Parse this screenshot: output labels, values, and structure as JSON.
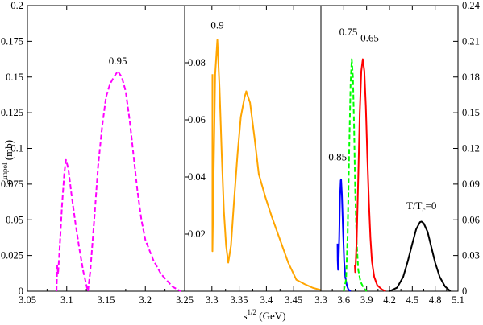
{
  "chart_data": {
    "type": "line",
    "xlabel": "s",
    "xlabel_sup": "1/2",
    "xlabel_unit": " (GeV)",
    "ylabel": "σ",
    "ylabel_sup": "unpol",
    "ylabel_unit": " (mb)",
    "panels": [
      {
        "xlim": [
          3.05,
          3.25
        ],
        "ylim": [
          0,
          0.2
        ],
        "y_axis_side": "left",
        "xticks": [
          "3.05",
          "3.1",
          "3.15",
          "3.2",
          "3.25"
        ],
        "xtick_values": [
          3.05,
          3.1,
          3.15,
          3.2,
          3.25
        ],
        "yticks": [
          "0",
          "0.025",
          "0.05",
          "0.075",
          "0.1",
          "0.125",
          "0.15",
          "0.175",
          "0.2"
        ],
        "ytick_values": [
          0,
          0.025,
          0.05,
          0.075,
          0.1,
          0.125,
          0.15,
          0.175,
          0.2
        ],
        "series": [
          {
            "label": "0.95",
            "color": "#ff00ff",
            "dash": "dashed",
            "label_at": [
              3.165,
              0.159
            ],
            "points": [
              [
                3.087,
                0.0
              ],
              [
                3.088,
                0.018
              ],
              [
                3.089,
                0.012
              ],
              [
                3.091,
                0.03
              ],
              [
                3.094,
                0.06
              ],
              [
                3.097,
                0.083
              ],
              [
                3.099,
                0.092
              ],
              [
                3.102,
                0.086
              ],
              [
                3.106,
                0.068
              ],
              [
                3.111,
                0.048
              ],
              [
                3.116,
                0.03
              ],
              [
                3.121,
                0.014
              ],
              [
                3.126,
                0.002
              ],
              [
                3.127,
                0.0
              ],
              [
                3.13,
                0.014
              ],
              [
                3.135,
                0.05
              ],
              [
                3.14,
                0.088
              ],
              [
                3.145,
                0.115
              ],
              [
                3.15,
                0.136
              ],
              [
                3.155,
                0.145
              ],
              [
                3.16,
                0.15
              ],
              [
                3.165,
                0.154
              ],
              [
                3.17,
                0.15
              ],
              [
                3.175,
                0.14
              ],
              [
                3.18,
                0.12
              ],
              [
                3.185,
                0.095
              ],
              [
                3.19,
                0.07
              ],
              [
                3.195,
                0.05
              ],
              [
                3.2,
                0.036
              ],
              [
                3.21,
                0.022
              ],
              [
                3.22,
                0.012
              ],
              [
                3.235,
                0.003
              ],
              [
                3.245,
                0.0
              ]
            ]
          }
        ]
      },
      {
        "xlim": [
          3.25,
          3.5
        ],
        "ylim": [
          0,
          0.1
        ],
        "y_axis_side": "left-inner",
        "xticks": [
          "3.3",
          "3.35",
          "3.4",
          "3.45"
        ],
        "xtick_values": [
          3.3,
          3.35,
          3.4,
          3.45
        ],
        "yticks": [
          "0.02",
          "0.04",
          "0.06",
          "0.08"
        ],
        "ytick_values": [
          0.02,
          0.04,
          0.06,
          0.08
        ],
        "series": [
          {
            "label": "0.9",
            "color": "#ffa500",
            "dash": "solid",
            "label_at": [
              3.31,
              0.092
            ],
            "points": [
              [
                3.301,
                0.076
              ],
              [
                3.301,
                0.014
              ],
              [
                3.306,
                0.076
              ],
              [
                3.31,
                0.088
              ],
              [
                3.314,
                0.071
              ],
              [
                3.318,
                0.048
              ],
              [
                3.322,
                0.028
              ],
              [
                3.326,
                0.016
              ],
              [
                3.33,
                0.01
              ],
              [
                3.335,
                0.016
              ],
              [
                3.34,
                0.03
              ],
              [
                3.347,
                0.048
              ],
              [
                3.353,
                0.061
              ],
              [
                3.36,
                0.068
              ],
              [
                3.363,
                0.07
              ],
              [
                3.37,
                0.066
              ],
              [
                3.378,
                0.054
              ],
              [
                3.386,
                0.041
              ],
              [
                3.398,
                0.033
              ],
              [
                3.41,
                0.026
              ],
              [
                3.425,
                0.018
              ],
              [
                3.44,
                0.01
              ],
              [
                3.455,
                0.004
              ],
              [
                3.47,
                0.0025
              ],
              [
                3.485,
                0.0012
              ],
              [
                3.5,
                0.0004
              ]
            ]
          }
        ]
      },
      {
        "xlim": [
          3.3,
          5.1
        ],
        "ylim": [
          0,
          0.24
        ],
        "y_axis_side": "right",
        "xticks": [
          "3.3",
          "3.6",
          "3.9",
          "4.2",
          "4.5",
          "4.8",
          "5.1"
        ],
        "xtick_values": [
          3.3,
          3.6,
          3.9,
          4.2,
          4.5,
          4.8,
          5.1
        ],
        "yticks": [
          "0",
          "0.03",
          "0.06",
          "0.09",
          "0.12",
          "0.15",
          "0.18",
          "0.21",
          "0.24"
        ],
        "ytick_values": [
          0,
          0.03,
          0.06,
          0.09,
          0.12,
          0.15,
          0.18,
          0.21,
          0.24
        ],
        "series": [
          {
            "label": "0.85",
            "color": "#0000ff",
            "dash": "solid",
            "label_at": [
              3.52,
              0.11
            ],
            "points": [
              [
                3.518,
                0.04
              ],
              [
                3.52,
                0.026
              ],
              [
                3.525,
                0.018
              ],
              [
                3.53,
                0.02
              ],
              [
                3.54,
                0.045
              ],
              [
                3.55,
                0.078
              ],
              [
                3.56,
                0.093
              ],
              [
                3.565,
                0.094
              ],
              [
                3.575,
                0.082
              ],
              [
                3.59,
                0.052
              ],
              [
                3.605,
                0.025
              ],
              [
                3.62,
                0.012
              ],
              [
                3.64,
                0.005
              ],
              [
                3.66,
                0.0015
              ],
              [
                3.69,
                0.0
              ]
            ]
          },
          {
            "label": "0.75",
            "color": "#00ff00",
            "dash": "dashed",
            "label_at": [
              3.66,
              0.215
            ],
            "points": [
              [
                3.6,
                0.0
              ],
              [
                3.63,
                0.01
              ],
              [
                3.65,
                0.045
              ],
              [
                3.67,
                0.115
              ],
              [
                3.69,
                0.175
              ],
              [
                3.705,
                0.195
              ],
              [
                3.72,
                0.18
              ],
              [
                3.735,
                0.14
              ],
              [
                3.75,
                0.085
              ],
              [
                3.77,
                0.04
              ],
              [
                3.79,
                0.018
              ],
              [
                3.82,
                0.008
              ],
              [
                3.86,
                0.003
              ],
              [
                3.9,
                0.0
              ]
            ]
          },
          {
            "label": "0.65",
            "color": "#ff0000",
            "dash": "solid",
            "label_at": [
              3.94,
              0.21
            ],
            "points": [
              [
                3.745,
                0.022
              ],
              [
                3.75,
                0.016
              ],
              [
                3.755,
                0.02
              ],
              [
                3.77,
                0.045
              ],
              [
                3.79,
                0.095
              ],
              [
                3.81,
                0.15
              ],
              [
                3.83,
                0.185
              ],
              [
                3.85,
                0.195
              ],
              [
                3.87,
                0.185
              ],
              [
                3.89,
                0.155
              ],
              [
                3.91,
                0.112
              ],
              [
                3.93,
                0.075
              ],
              [
                3.95,
                0.045
              ],
              [
                3.97,
                0.025
              ],
              [
                4.0,
                0.012
              ],
              [
                4.04,
                0.005
              ],
              [
                4.1,
                0.0015
              ],
              [
                4.15,
                0.0
              ]
            ]
          },
          {
            "label": "T/Tc=0",
            "label_main": "T/T",
            "label_sub": "c",
            "label_tail": "=0",
            "color": "#000000",
            "dash": "solid",
            "label_at": [
              4.62,
              0.069
            ],
            "points": [
              [
                4.2,
                0.0
              ],
              [
                4.3,
                0.003
              ],
              [
                4.38,
                0.012
              ],
              [
                4.44,
                0.025
              ],
              [
                4.5,
                0.04
              ],
              [
                4.55,
                0.052
              ],
              [
                4.6,
                0.058
              ],
              [
                4.62,
                0.0585
              ],
              [
                4.65,
                0.057
              ],
              [
                4.7,
                0.05
              ],
              [
                4.75,
                0.037
              ],
              [
                4.8,
                0.024
              ],
              [
                4.86,
                0.012
              ],
              [
                4.93,
                0.004
              ],
              [
                5.0,
                0.0
              ]
            ]
          }
        ]
      }
    ]
  }
}
